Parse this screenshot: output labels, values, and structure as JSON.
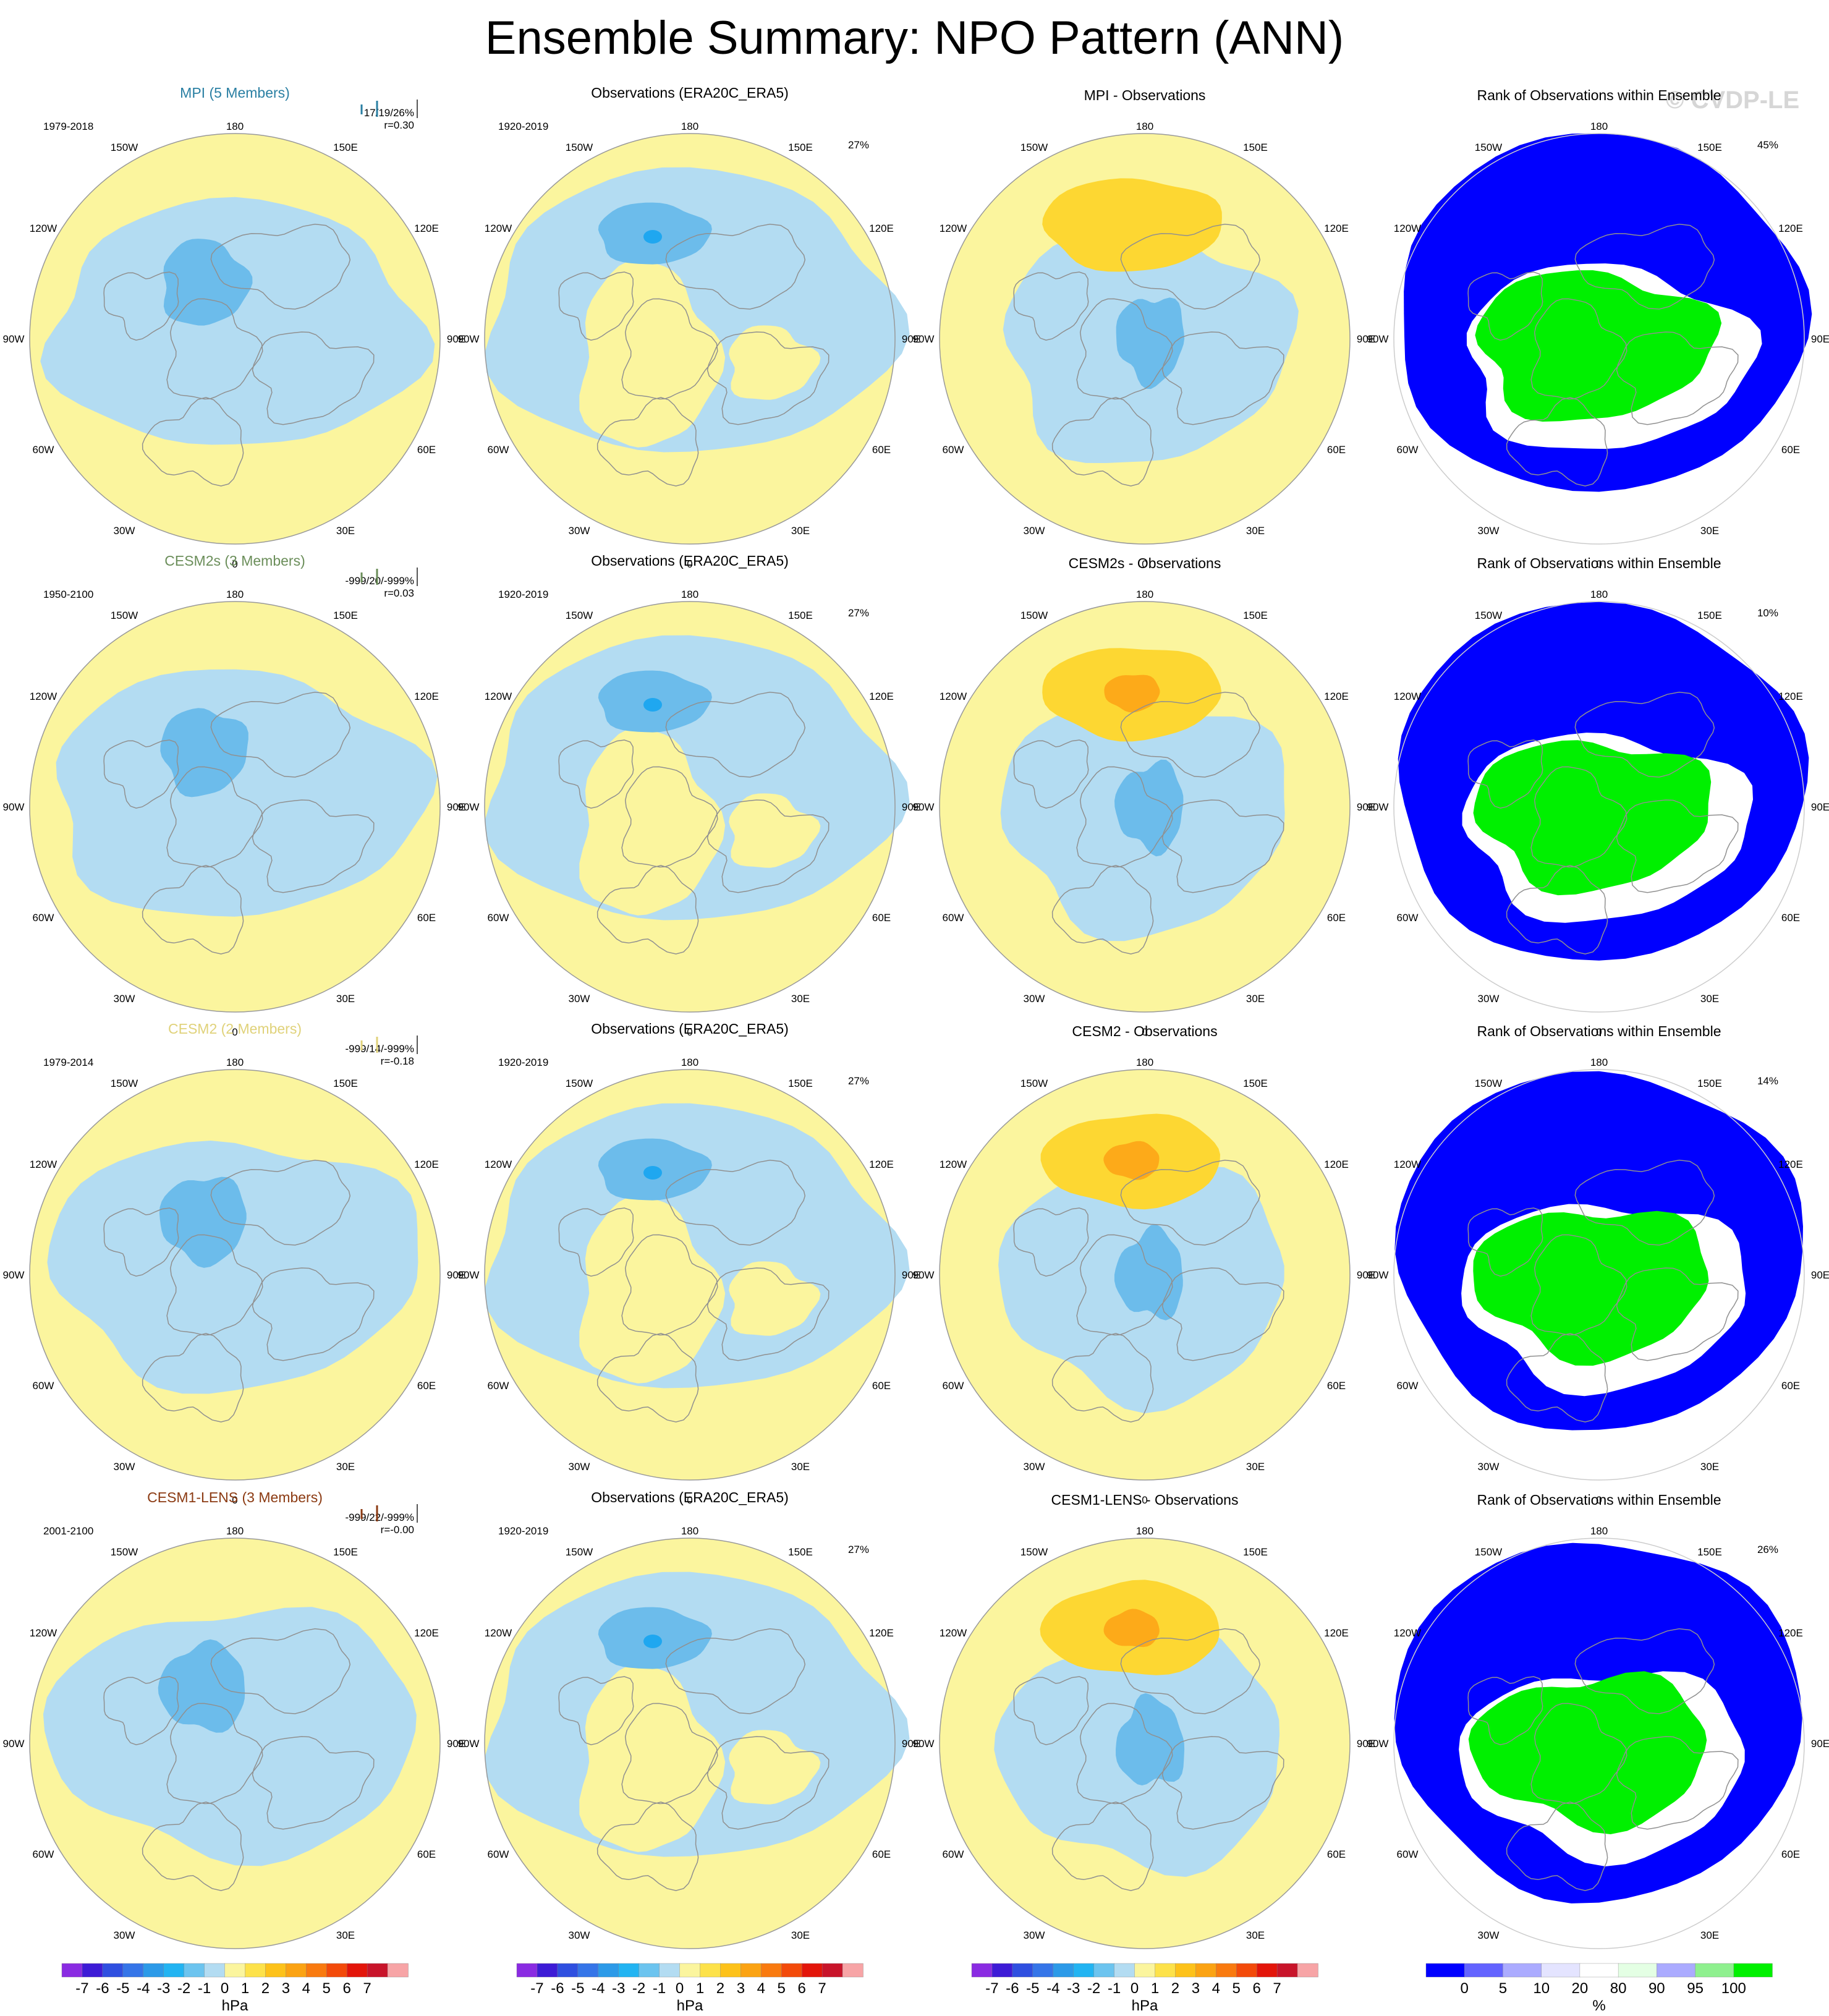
{
  "title": "Ensemble Summary: NPO Pattern (ANN)",
  "watermark": "© CVDP-LE",
  "lon_labels": [
    "180",
    "150E",
    "120E",
    "90E",
    "60E",
    "30E",
    "0",
    "30W",
    "60W",
    "90W",
    "120W",
    "150W"
  ],
  "colors": {
    "neg_light": "#b3dcf2",
    "neg_mid": "#6cbceb",
    "neg_strong": "#1fa7f0",
    "pos_light": "#fbf59e",
    "pos_mid": "#fdd732",
    "pos_strong": "#fdaa19",
    "rank_blue": "#0000ff",
    "rank_green": "#00f000",
    "coast": "#909090",
    "border": "#999999"
  },
  "rows": [
    {
      "model": "MPI (5 Members)",
      "model_color": "#2a7fa3",
      "period": "1979-2018",
      "stats1": "17/19/26%",
      "stats2": "r=0.30",
      "stats_prefix": "150E",
      "obs_title": "Observations (ERA20C_ERA5)",
      "obs_period": "1920-2019",
      "obs_pct": "27%",
      "diff_title": "MPI - Observations",
      "rank_title": "Rank of Observations within Ensemble",
      "rank_pct": "45%"
    },
    {
      "model": "CESM2s (3 Members)",
      "model_color": "#6b8e5a",
      "period": "1950-2100",
      "stats1": "-999/20/-999%",
      "stats2": "r=0.03",
      "stats_prefix": "150E",
      "obs_title": "Observations (ERA20C_ERA5)",
      "obs_period": "1920-2019",
      "obs_pct": "27%",
      "diff_title": "CESM2s - Observations",
      "rank_title": "Rank of Observations within Ensemble",
      "rank_pct": "10%"
    },
    {
      "model": "CESM2 (2 Members)",
      "model_color": "#e0d27a",
      "period": "1979-2014",
      "stats1": "-999/14/-999%",
      "stats2": "r=-0.18",
      "stats_prefix": "150E",
      "obs_title": "Observations (ERA20C_ERA5)",
      "obs_period": "1920-2019",
      "obs_pct": "27%",
      "diff_title": "CESM2 - Observations",
      "rank_title": "Rank of Observations within Ensemble",
      "rank_pct": "14%"
    },
    {
      "model": "CESM1-LENS (3 Members)",
      "model_color": "#8b3a12",
      "period": "2001-2100",
      "stats1": "-999/22/-999%",
      "stats2": "r=-0.00",
      "stats_prefix": "150E",
      "obs_title": "Observations (ERA20C_ERA5)",
      "obs_period": "1920-2019",
      "obs_pct": "27%",
      "diff_title": "CESM1-LENS - Observations",
      "rank_title": "Rank of Observations within Ensemble",
      "rank_pct": "26%"
    }
  ],
  "colorbar_hpa": {
    "unit": "hPa",
    "labels": [
      "-7",
      "-6",
      "-5",
      "-4",
      "-3",
      "-2",
      "-1",
      "0",
      "1",
      "2",
      "3",
      "4",
      "5",
      "6",
      "7"
    ],
    "colors": [
      "#8a2be2",
      "#3d1bd6",
      "#2f4fe0",
      "#3575e8",
      "#2c9ae8",
      "#22b4f2",
      "#6cc4ef",
      "#b3dcf2",
      "#fbf59e",
      "#fde24a",
      "#fdc21a",
      "#fba313",
      "#f97a0f",
      "#f34a0a",
      "#e3150a",
      "#c8142a",
      "#f7a4a6"
    ]
  },
  "colorbar_rank": {
    "unit": "%",
    "labels": [
      "0",
      "5",
      "10",
      "20",
      "80",
      "90",
      "95",
      "100"
    ],
    "colors": [
      "#0000ff",
      "#6363ff",
      "#ababff",
      "#e4e4ff",
      "#ffffff",
      "#e4ffe4",
      "#ababff",
      "#8ff08f",
      "#00f000"
    ]
  },
  "chart_data": [
    {
      "type": "heatmap",
      "panel": "MPI (5 Members)",
      "projection": "polar-stereographic",
      "units": "hPa",
      "period": "1979-2018",
      "stats": "17/19/26%",
      "r": 0.3,
      "features": [
        {
          "sign": "negative",
          "region": "Arctic/N Pacific-Siberia band",
          "magnitude": -1.5
        },
        {
          "sign": "positive",
          "region": "mid-latitude ring",
          "magnitude": 0.8
        }
      ]
    },
    {
      "type": "heatmap",
      "panel": "Observations (ERA20C_ERA5)",
      "projection": "polar-stereographic",
      "units": "hPa",
      "period": "1920-2019",
      "pct": "27%",
      "features": [
        {
          "sign": "negative",
          "region": "North Pacific (Aleutian)",
          "magnitude": -2.5
        },
        {
          "sign": "positive",
          "region": "North America / Greenland",
          "magnitude": 0.8
        }
      ]
    },
    {
      "type": "heatmap",
      "panel": "MPI - Observations",
      "units": "hPa",
      "features": [
        {
          "sign": "positive",
          "region": "North Pacific",
          "magnitude": 1.5
        },
        {
          "sign": "negative",
          "region": "Arctic",
          "magnitude": -1.2
        }
      ]
    },
    {
      "type": "heatmap",
      "panel": "Rank of Observations within Ensemble (MPI)",
      "units": "%",
      "pct": "45%",
      "features": [
        {
          "rank": "0-5",
          "region": "N Pacific / mid-latitudes"
        },
        {
          "rank": "95-100",
          "region": "North America / Arctic"
        }
      ]
    },
    {
      "type": "heatmap",
      "panel": "CESM2s (3 Members)",
      "units": "hPa",
      "period": "1950-2100",
      "stats": "-999/20/-999%",
      "r": 0.03
    },
    {
      "type": "heatmap",
      "panel": "CESM2s - Observations",
      "units": "hPa",
      "features": [
        {
          "sign": "positive",
          "region": "North Pacific",
          "magnitude": 2.5
        }
      ]
    },
    {
      "type": "heatmap",
      "panel": "Rank (CESM2s)",
      "units": "%",
      "pct": "10%"
    },
    {
      "type": "heatmap",
      "panel": "CESM2 (2 Members)",
      "units": "hPa",
      "period": "1979-2014",
      "stats": "-999/14/-999%",
      "r": -0.18
    },
    {
      "type": "heatmap",
      "panel": "CESM2 - Observations",
      "units": "hPa",
      "features": [
        {
          "sign": "positive",
          "region": "North Pacific",
          "magnitude": 2.5
        }
      ]
    },
    {
      "type": "heatmap",
      "panel": "Rank (CESM2)",
      "units": "%",
      "pct": "14%"
    },
    {
      "type": "heatmap",
      "panel": "CESM1-LENS (3 Members)",
      "units": "hPa",
      "period": "2001-2100",
      "stats": "-999/22/-999%",
      "r": -0.0
    },
    {
      "type": "heatmap",
      "panel": "CESM1-LENS - Observations",
      "units": "hPa",
      "features": [
        {
          "sign": "positive",
          "region": "North Pacific",
          "magnitude": 2.5
        }
      ]
    },
    {
      "type": "heatmap",
      "panel": "Rank (CESM1-LENS)",
      "units": "%",
      "pct": "26%"
    }
  ]
}
